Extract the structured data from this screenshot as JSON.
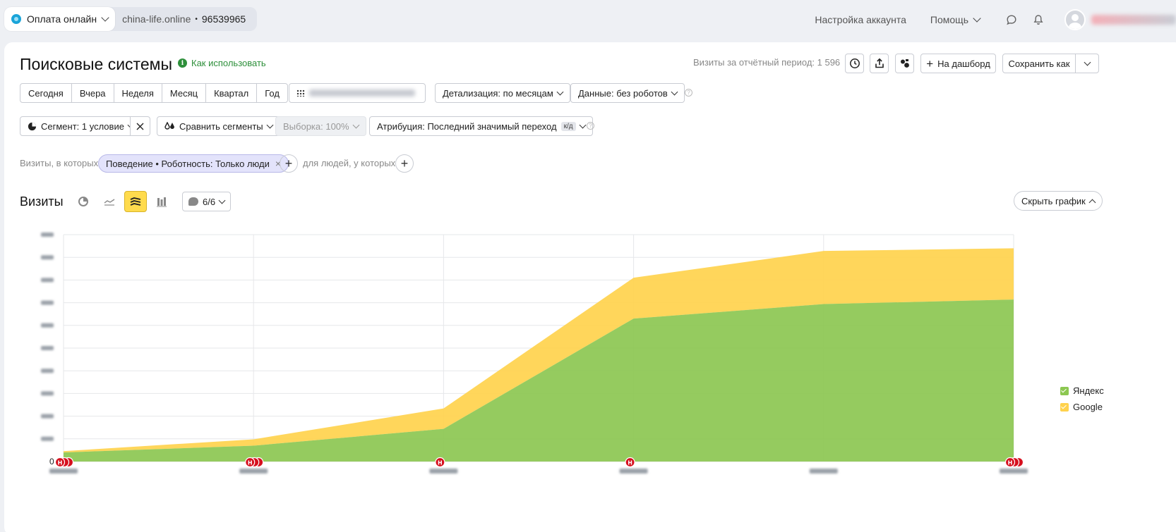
{
  "counter": {
    "name": "Оплата онлайн",
    "site": "china-life.online",
    "separator": "•",
    "id": "96539965"
  },
  "top_nav": {
    "account_settings": "Настройка аккаунта",
    "help": "Помощь"
  },
  "page": {
    "title": "Поисковые системы",
    "how_to": "Как использовать",
    "visits_total": "Визиты за отчётный период: 1 596",
    "to_dashboard": "На дашборд",
    "save_as": "Сохранить как"
  },
  "periods": [
    "Сегодня",
    "Вчера",
    "Неделя",
    "Месяц",
    "Квартал",
    "Год"
  ],
  "controls": {
    "detail": "Детализация: по месяцам",
    "data": "Данные: без роботов",
    "segment": "Сегмент: 1 условие",
    "compare": "Сравнить сегменты",
    "sample": "Выборка: 100%",
    "attribution": "Атрибуция: Последний значимый переход",
    "attribution_badge": "к/д"
  },
  "filter": {
    "prefix": "Визиты, в которых",
    "chip": "Поведение • Роботность: Только люди",
    "people_label": "для людей, у которых"
  },
  "chart_header": {
    "title": "Визиты",
    "comments": "6/6",
    "hide": "Скрыть график"
  },
  "colors": {
    "yandex": "#8cc751",
    "google": "#ffd24d",
    "annotation": "#d6101e",
    "accent_green": "#2d8f3a"
  },
  "chart_data": {
    "type": "area",
    "stacked": true,
    "y_zero_label": "0",
    "ylim": [
      0,
      500
    ],
    "x_points": 6,
    "grid": true,
    "legend_position": "right",
    "series": [
      {
        "name": "Яндекс",
        "values": [
          20,
          35,
          72,
          315,
          347,
          357
        ]
      },
      {
        "name": "Google",
        "values": [
          3,
          14,
          45,
          90,
          117,
          113
        ]
      }
    ],
    "annotation_marker": "Н"
  }
}
